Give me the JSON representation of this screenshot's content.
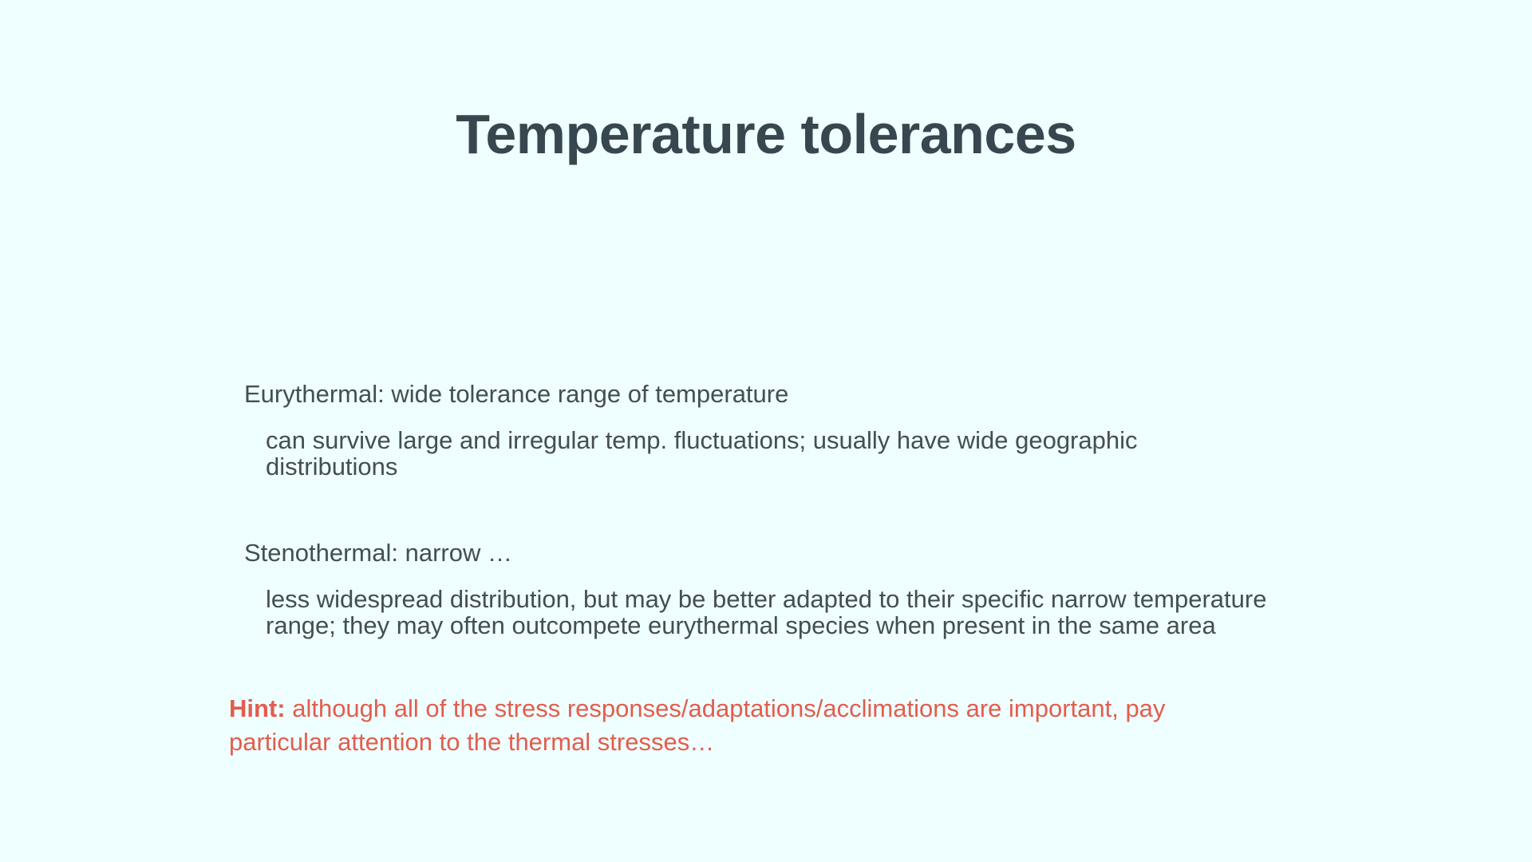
{
  "slide": {
    "title": "Temperature tolerances",
    "items": [
      {
        "term": "Eurythermal: wide tolerance range of temperature",
        "detail": "can survive large and irregular temp. fluctuations; usually have wide geographic distributions"
      },
      {
        "term": "Stenothermal: narrow …",
        "detail": "less widespread distribution, but may be better adapted to their specific narrow temperature range; they may often outcompete eurythermal species when present in the same area"
      }
    ],
    "hint": {
      "label": "Hint:",
      "text": " although all of the stress responses/adaptations/acclimations are important, pay particular attention to the thermal stresses…",
      "color": "#e35d4d"
    },
    "colors": {
      "background": "#effefe",
      "title": "#37474f",
      "body": "#454e52"
    }
  }
}
